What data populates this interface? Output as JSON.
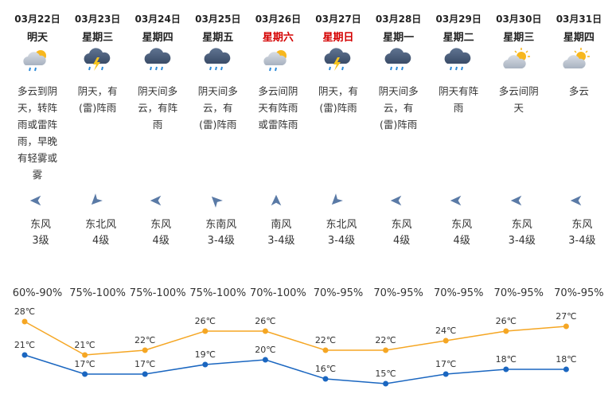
{
  "days": [
    {
      "date": "03月22日",
      "weekday": "明天",
      "weekday_color": "#222222",
      "desc": "多云到阴天，转阵雨或雷阵雨，早晚有轻雾或雾",
      "wind": "东风",
      "level": "3级",
      "humidity": "60%-90%"
    },
    {
      "date": "03月23日",
      "weekday": "星期三",
      "weekday_color": "#222222",
      "desc": "阴天，有(雷)阵雨",
      "wind": "东北风",
      "level": "4级",
      "humidity": "75%-100%"
    },
    {
      "date": "03月24日",
      "weekday": "星期四",
      "weekday_color": "#222222",
      "desc": "阴天间多云，有阵雨",
      "wind": "东风",
      "level": "4级",
      "humidity": "75%-100%"
    },
    {
      "date": "03月25日",
      "weekday": "星期五",
      "weekday_color": "#222222",
      "desc": "阴天间多云，有(雷)阵雨",
      "wind": "东南风",
      "level": "3-4级",
      "humidity": "75%-100%"
    },
    {
      "date": "03月26日",
      "weekday": "星期六",
      "weekday_color": "#d40000",
      "desc": "多云间阴天有阵雨或雷阵雨",
      "wind": "南风",
      "level": "3-4级",
      "humidity": "70%-100%"
    },
    {
      "date": "03月27日",
      "weekday": "星期日",
      "weekday_color": "#d40000",
      "desc": "阴天，有(雷)阵雨",
      "wind": "东北风",
      "level": "3-4级",
      "humidity": "70%-95%"
    },
    {
      "date": "03月28日",
      "weekday": "星期一",
      "weekday_color": "#222222",
      "desc": "阴天间多云，有(雷)阵雨",
      "wind": "东风",
      "level": "4级",
      "humidity": "70%-95%"
    },
    {
      "date": "03月29日",
      "weekday": "星期二",
      "weekday_color": "#222222",
      "desc": "阴天有阵雨",
      "wind": "东风",
      "level": "4级",
      "humidity": "70%-95%"
    },
    {
      "date": "03月30日",
      "weekday": "星期三",
      "weekday_color": "#222222",
      "desc": "多云间阴天",
      "wind": "东风",
      "level": "3-4级",
      "humidity": "70%-95%"
    },
    {
      "date": "03月31日",
      "weekday": "星期四",
      "weekday_color": "#222222",
      "desc": "多云",
      "wind": "东风",
      "level": "3-4级",
      "humidity": "70%-95%"
    }
  ],
  "temperature": {
    "high": {
      "color": "#f5a623",
      "values": [
        28,
        21,
        22,
        26,
        26,
        22,
        22,
        24,
        26,
        27
      ],
      "value_labels": [
        "28℃",
        "21℃",
        "22℃",
        "26℃",
        "26℃",
        "22℃",
        "22℃",
        "24℃",
        "26℃",
        "27℃"
      ]
    },
    "low": {
      "color": "#1a66c0",
      "values": [
        21,
        17,
        17,
        19,
        20,
        16,
        15,
        17,
        18,
        18
      ],
      "value_labels": [
        "21℃",
        "17℃",
        "17℃",
        "19℃",
        "20℃",
        "16℃",
        "15℃",
        "17℃",
        "18℃",
        "18℃"
      ]
    }
  }
}
